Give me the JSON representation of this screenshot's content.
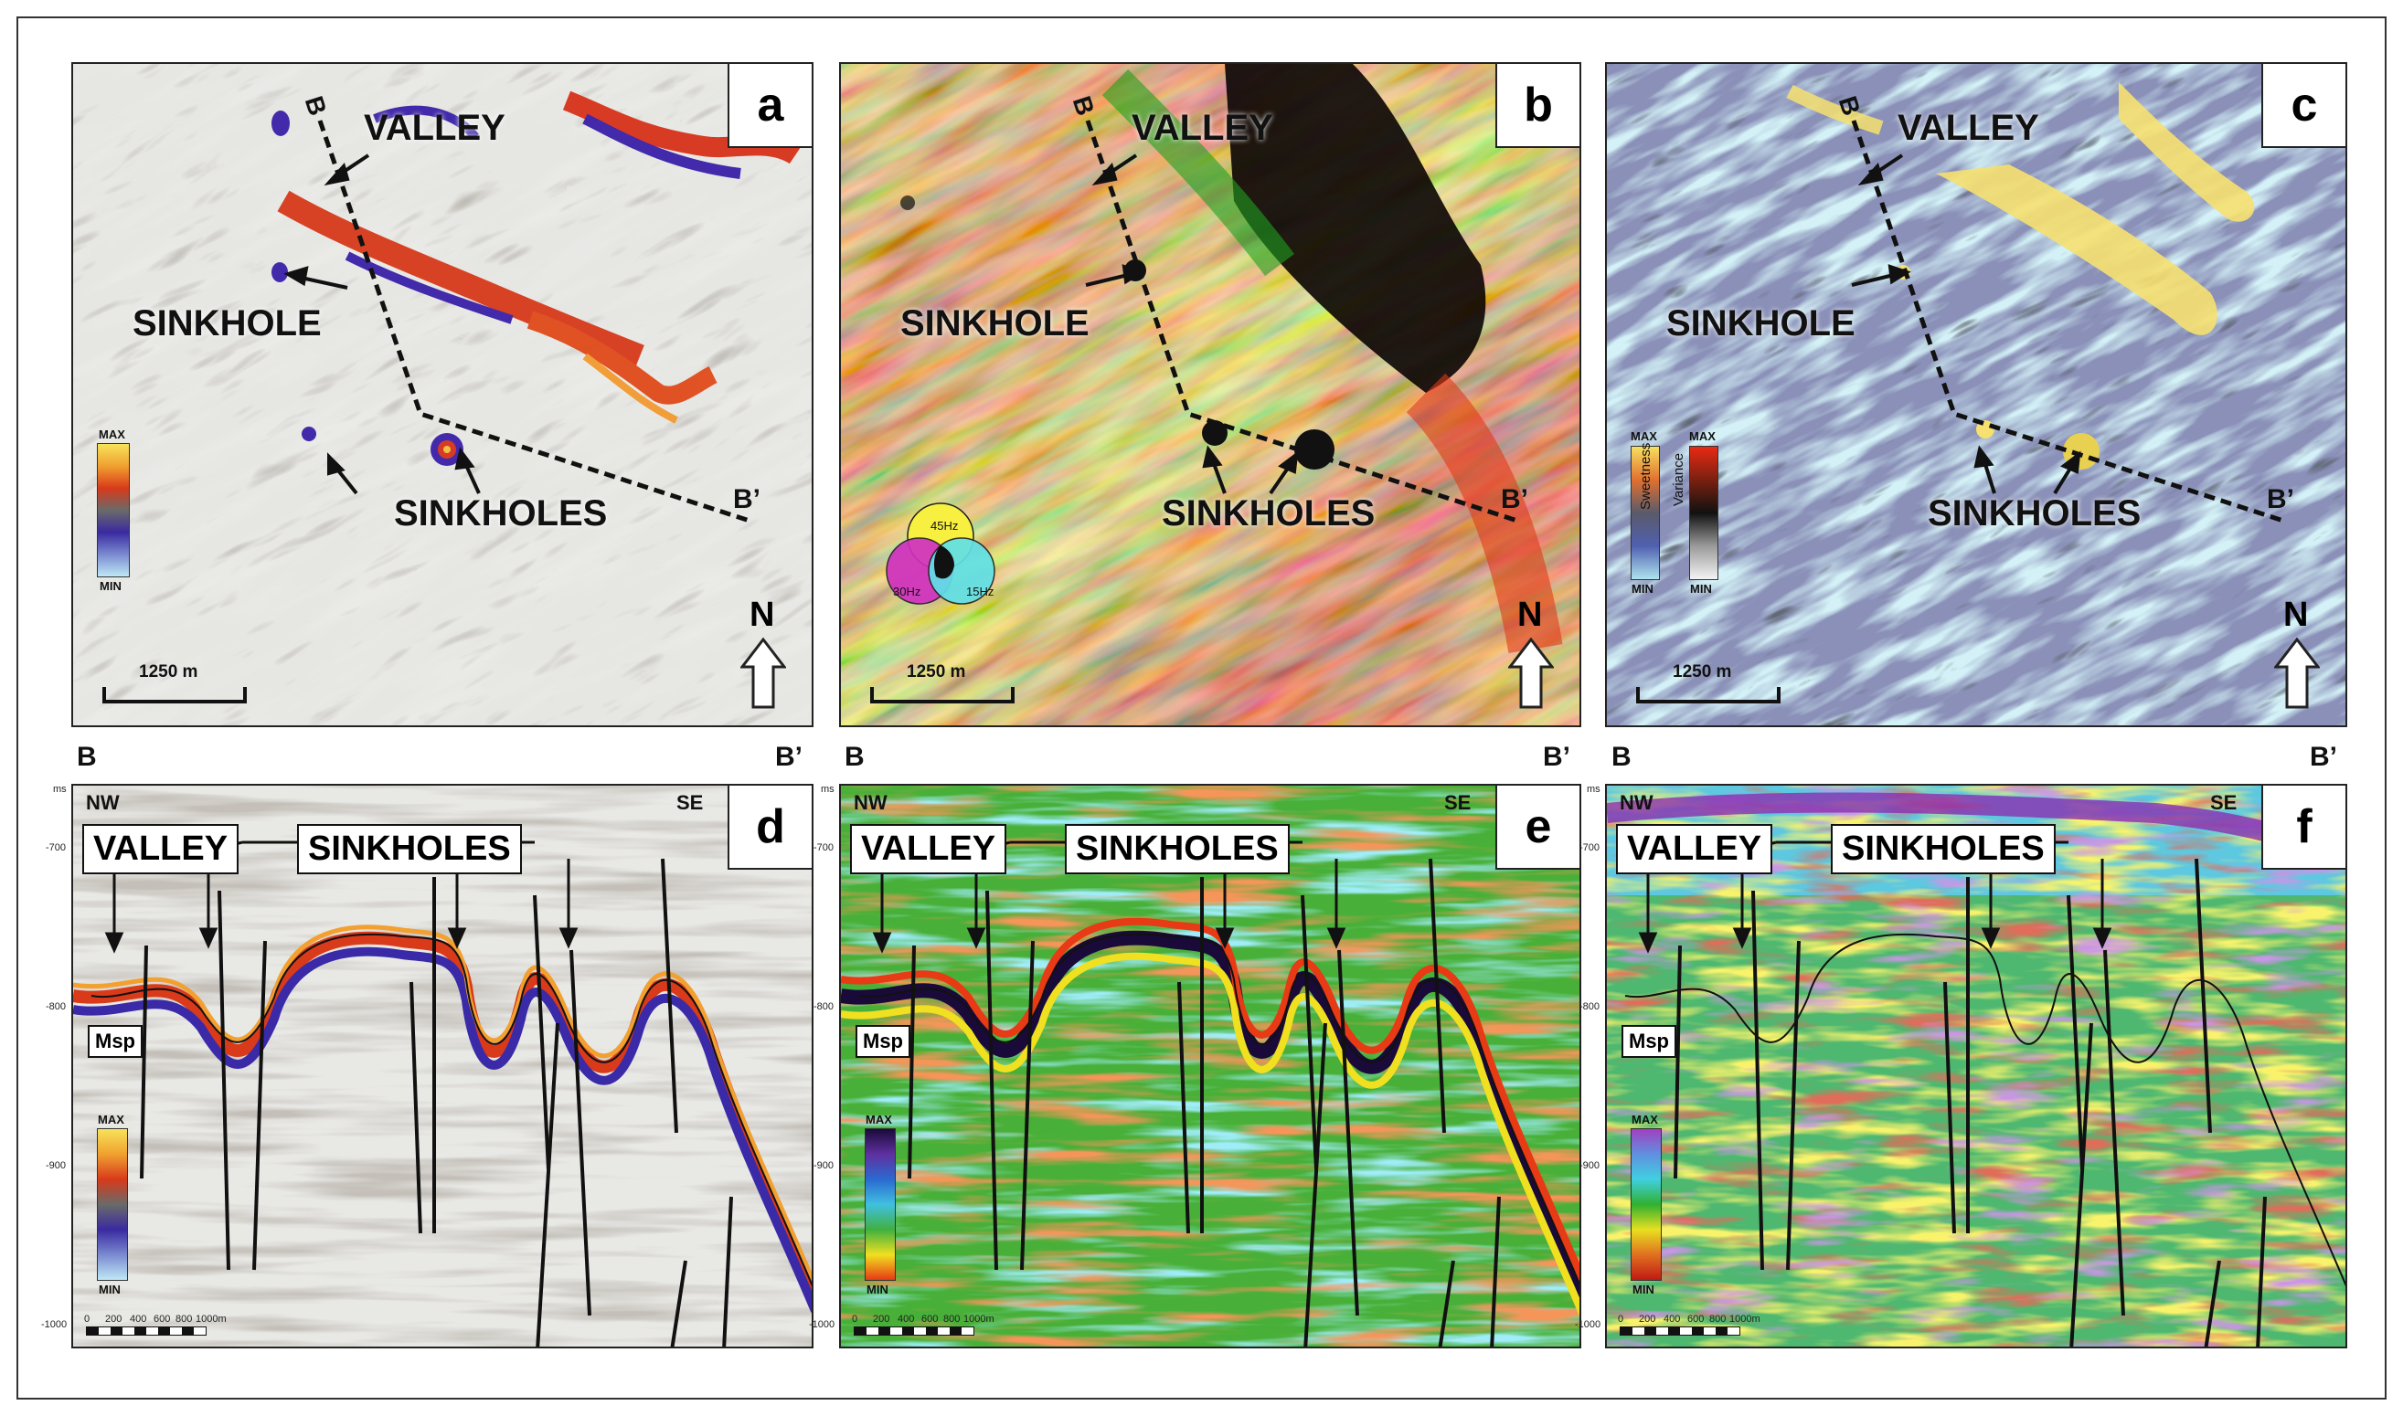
{
  "panels": {
    "a": {
      "label": "a",
      "valley": "VALLEY",
      "sinkhole": "SINKHOLE",
      "sinkholes": "SINKHOLES",
      "scale": "1250 m",
      "north": "N",
      "cb_max": "MAX",
      "cb_min": "MIN",
      "b": "B",
      "b_prime": "B’"
    },
    "b": {
      "label": "b",
      "valley": "VALLEY",
      "sinkhole": "SINKHOLE",
      "sinkholes": "SINKHOLES",
      "scale": "1250 m",
      "north": "N",
      "b": "B",
      "b_prime": "B’",
      "rgb_45": "45Hz",
      "rgb_30": "30Hz",
      "rgb_15": "15Hz"
    },
    "c": {
      "label": "c",
      "valley": "VALLEY",
      "sinkhole": "SINKHOLE",
      "sinkholes": "SINKHOLES",
      "scale": "1250 m",
      "north": "N",
      "b": "B",
      "b_prime": "B’",
      "cb1_max": "MAX",
      "cb1_min": "MIN",
      "cb1_name": "Sweetness",
      "cb2_max": "MAX",
      "cb2_min": "MIN",
      "cb2_name": "Variance"
    },
    "d": {
      "label": "d",
      "valley": "VALLEY",
      "sinkholes": "SINKHOLES",
      "msp": "Msp",
      "nw": "NW",
      "se": "SE",
      "cb_max": "MAX",
      "cb_min": "MIN",
      "b": "B",
      "b_prime": "B’"
    },
    "e": {
      "label": "e",
      "valley": "VALLEY",
      "sinkholes": "SINKHOLES",
      "msp": "Msp",
      "nw": "NW",
      "se": "SE",
      "cb_max": "MAX",
      "cb_min": "MIN",
      "b": "B",
      "b_prime": "B’"
    },
    "f": {
      "label": "f",
      "valley": "VALLEY",
      "sinkholes": "SINKHOLES",
      "msp": "Msp",
      "nw": "NW",
      "se": "SE",
      "cb_max": "MAX",
      "cb_min": "MIN",
      "b": "B",
      "b_prime": "B’"
    }
  },
  "section_axis": {
    "unit": "ms",
    "ticks": [
      "-700",
      "-800",
      "-900",
      "-1000"
    ]
  },
  "section_scale": [
    "0",
    "200",
    "400",
    "600",
    "800",
    "1000m"
  ],
  "colors": {
    "frame": "#333333",
    "a_cb": [
      "#f7e35a",
      "#f0a030",
      "#d83a1a",
      "#6a6a6a",
      "#3a2aa0",
      "#7a8ad0",
      "#bfe8f5"
    ],
    "c_sweet": [
      "#f6e060",
      "#e07030",
      "#5a5a6a",
      "#5060b0",
      "#aee3ee"
    ],
    "c_var": [
      "#e82a14",
      "#7a2010",
      "#111111",
      "#9a9a9a",
      "#f4f4f4"
    ],
    "e_cb": [
      "#1a0a3a",
      "#6030a0",
      "#2a6ad0",
      "#40c0e0",
      "#40b040",
      "#f0e020",
      "#e83a14"
    ],
    "f_cb": [
      "#a040c0",
      "#6090e0",
      "#40d0e0",
      "#30b030",
      "#e8e020",
      "#e07020",
      "#c01a14"
    ]
  }
}
